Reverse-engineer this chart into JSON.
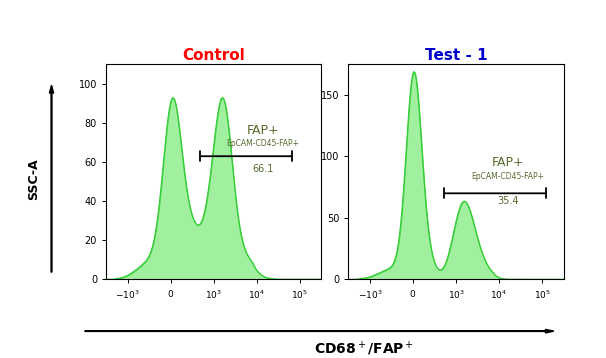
{
  "title_left": "Control",
  "title_right": "Test - 1",
  "title_left_color": "#ff0000",
  "title_right_color": "#0000cc",
  "xlabel": "CD68$^+$/FAP$^+$",
  "ylabel": "SSC-A",
  "fill_color": "#90ee90",
  "fill_alpha": 0.85,
  "fill_edge_color": "#32cd32",
  "annotation_left_label": "FAP+",
  "annotation_left_sub": "EpCAM-CD45-FAP+",
  "annotation_left_val": "66.1",
  "annotation_right_label": "FAP+",
  "annotation_right_sub": "EpCAM-CD45-FAP+",
  "annotation_right_val": "35.4",
  "annotation_color": "#556b2f",
  "left_ylim": [
    0,
    110
  ],
  "right_ylim": [
    0,
    175
  ],
  "left_yticks": [
    0,
    20,
    40,
    60,
    80,
    100
  ],
  "right_yticks": [
    0,
    50,
    100,
    150
  ],
  "background_color": "#ffffff"
}
